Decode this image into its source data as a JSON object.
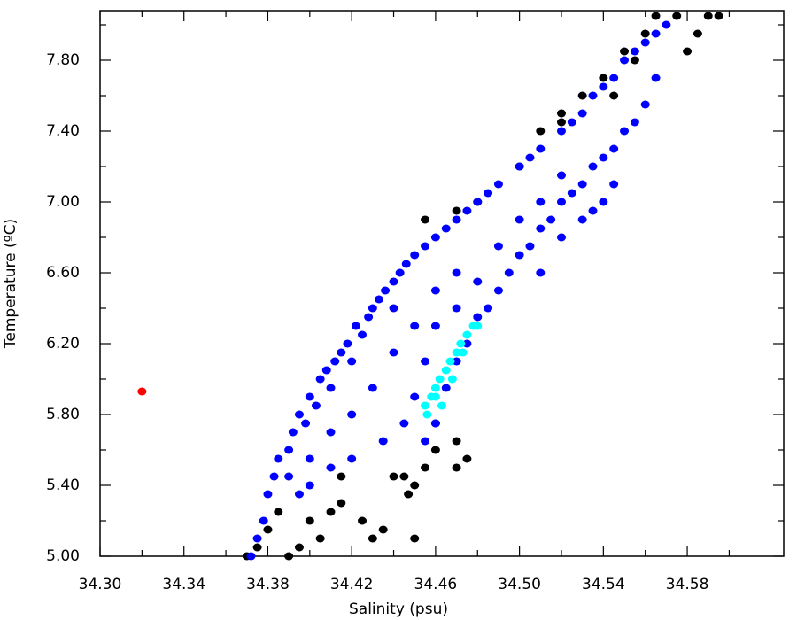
{
  "chart_data": {
    "type": "scatter",
    "x_label": "Salinity (psu)",
    "y_label": "Temperature (ºC)",
    "xlim": [
      34.3,
      34.626
    ],
    "ylim": [
      5.0,
      8.08
    ],
    "xticks": [
      {
        "value": 34.3,
        "label": "34.30"
      },
      {
        "value": 34.34,
        "label": "34.34"
      },
      {
        "value": 34.38,
        "label": "34.38"
      },
      {
        "value": 34.42,
        "label": "34.42"
      },
      {
        "value": 34.46,
        "label": "34.46"
      },
      {
        "value": 34.5,
        "label": "34.50"
      },
      {
        "value": 34.54,
        "label": "34.54"
      },
      {
        "value": 34.58,
        "label": "34.58"
      }
    ],
    "xticks_minor": [
      34.32,
      34.36,
      34.4,
      34.44,
      34.48,
      34.52,
      34.56,
      34.6
    ],
    "yticks": [
      {
        "value": 5.0,
        "label": "5.00"
      },
      {
        "value": 5.4,
        "label": "5.40"
      },
      {
        "value": 5.8,
        "label": "5.80"
      },
      {
        "value": 6.2,
        "label": "6.20"
      },
      {
        "value": 6.6,
        "label": "6.60"
      },
      {
        "value": 7.0,
        "label": "7.00"
      },
      {
        "value": 7.4,
        "label": "7.40"
      },
      {
        "value": 7.8,
        "label": "7.80"
      }
    ],
    "yticks_minor": [
      5.2,
      5.6,
      6.0,
      6.4,
      6.8,
      7.2,
      7.6,
      8.0
    ],
    "series": [
      {
        "color": "#000000",
        "x": [
          34.37,
          34.375,
          34.38,
          34.385,
          34.39,
          34.395,
          34.405,
          34.41,
          34.415,
          34.425,
          34.43,
          34.435,
          34.44,
          34.445,
          34.45,
          34.447,
          34.455,
          34.46,
          34.415,
          34.4,
          34.47,
          34.475,
          34.45,
          34.48,
          34.5,
          34.51,
          34.52,
          34.53,
          34.54,
          34.55,
          34.56,
          34.565,
          34.575,
          34.59,
          34.595,
          34.585,
          34.58,
          34.555,
          34.545,
          34.52,
          34.455,
          34.47,
          34.47,
          34.46
        ],
        "y": [
          5.0,
          5.05,
          5.15,
          5.25,
          5.0,
          5.05,
          5.1,
          5.25,
          5.3,
          5.2,
          5.1,
          5.15,
          5.45,
          5.45,
          5.4,
          5.35,
          5.5,
          5.6,
          5.45,
          5.2,
          5.5,
          5.55,
          5.1,
          7.0,
          7.2,
          7.4,
          7.5,
          7.6,
          7.7,
          7.85,
          7.95,
          8.05,
          8.05,
          8.05,
          8.05,
          7.95,
          7.85,
          7.8,
          7.6,
          7.45,
          6.9,
          6.95,
          5.65,
          5.75
        ]
      },
      {
        "color": "#0000ff",
        "x": [
          34.372,
          34.375,
          34.378,
          34.38,
          34.383,
          34.385,
          34.39,
          34.392,
          34.395,
          34.398,
          34.4,
          34.403,
          34.405,
          34.408,
          34.41,
          34.412,
          34.415,
          34.418,
          34.42,
          34.422,
          34.425,
          34.428,
          34.43,
          34.433,
          34.436,
          34.44,
          34.443,
          34.446,
          34.45,
          34.455,
          34.46,
          34.465,
          34.47,
          34.475,
          34.48,
          34.485,
          34.49,
          34.5,
          34.505,
          34.51,
          34.52,
          34.525,
          34.53,
          34.535,
          34.54,
          34.545,
          34.55,
          34.555,
          34.56,
          34.565,
          34.57,
          34.4,
          34.41,
          34.42,
          34.43,
          34.44,
          34.45,
          34.44,
          34.46,
          34.47,
          34.46,
          34.455,
          34.45,
          34.445,
          34.435,
          34.42,
          34.41,
          34.4,
          34.39,
          34.395,
          34.455,
          34.46,
          34.465,
          34.47,
          34.475,
          34.48,
          34.485,
          34.49,
          34.495,
          34.5,
          34.505,
          34.51,
          34.515,
          34.52,
          34.525,
          34.53,
          34.535,
          34.54,
          34.545,
          34.55,
          34.555,
          34.56,
          34.565,
          34.5,
          34.51,
          34.52,
          34.49,
          34.48,
          34.47,
          34.54,
          34.53,
          34.52,
          34.51,
          34.535,
          34.545
        ],
        "y": [
          5.0,
          5.1,
          5.2,
          5.35,
          5.45,
          5.55,
          5.6,
          5.7,
          5.8,
          5.75,
          5.9,
          5.85,
          6.0,
          6.05,
          5.95,
          6.1,
          6.15,
          6.2,
          6.1,
          6.3,
          6.25,
          6.35,
          6.4,
          6.45,
          6.5,
          6.55,
          6.6,
          6.65,
          6.7,
          6.75,
          6.8,
          6.85,
          6.9,
          6.95,
          7.0,
          7.05,
          7.1,
          7.2,
          7.25,
          7.3,
          7.4,
          7.45,
          7.5,
          7.6,
          7.65,
          7.7,
          7.8,
          7.85,
          7.9,
          7.95,
          8.0,
          5.55,
          5.7,
          5.8,
          5.95,
          6.15,
          6.3,
          6.4,
          6.5,
          6.6,
          6.3,
          6.1,
          5.9,
          5.75,
          5.65,
          5.55,
          5.5,
          5.4,
          5.45,
          5.35,
          5.65,
          5.75,
          5.95,
          6.1,
          6.2,
          6.35,
          6.4,
          6.5,
          6.6,
          6.7,
          6.75,
          6.85,
          6.9,
          7.0,
          7.05,
          7.1,
          7.2,
          7.25,
          7.3,
          7.4,
          7.45,
          7.55,
          7.7,
          6.9,
          7.0,
          7.15,
          6.75,
          6.55,
          6.4,
          7.0,
          6.9,
          6.8,
          6.6,
          6.95,
          7.1
        ]
      },
      {
        "color": "#00ffff",
        "x": [
          34.455,
          34.458,
          34.46,
          34.462,
          34.465,
          34.467,
          34.47,
          34.472,
          34.475,
          34.478,
          34.456,
          34.463,
          34.468,
          34.473,
          34.48,
          34.46
        ],
        "y": [
          5.85,
          5.9,
          5.95,
          6.0,
          6.05,
          6.1,
          6.15,
          6.2,
          6.25,
          6.3,
          5.8,
          5.85,
          6.0,
          6.15,
          6.3,
          5.9
        ]
      },
      {
        "color": "#ff0000",
        "x": [
          34.32
        ],
        "y": [
          5.93
        ]
      }
    ]
  }
}
